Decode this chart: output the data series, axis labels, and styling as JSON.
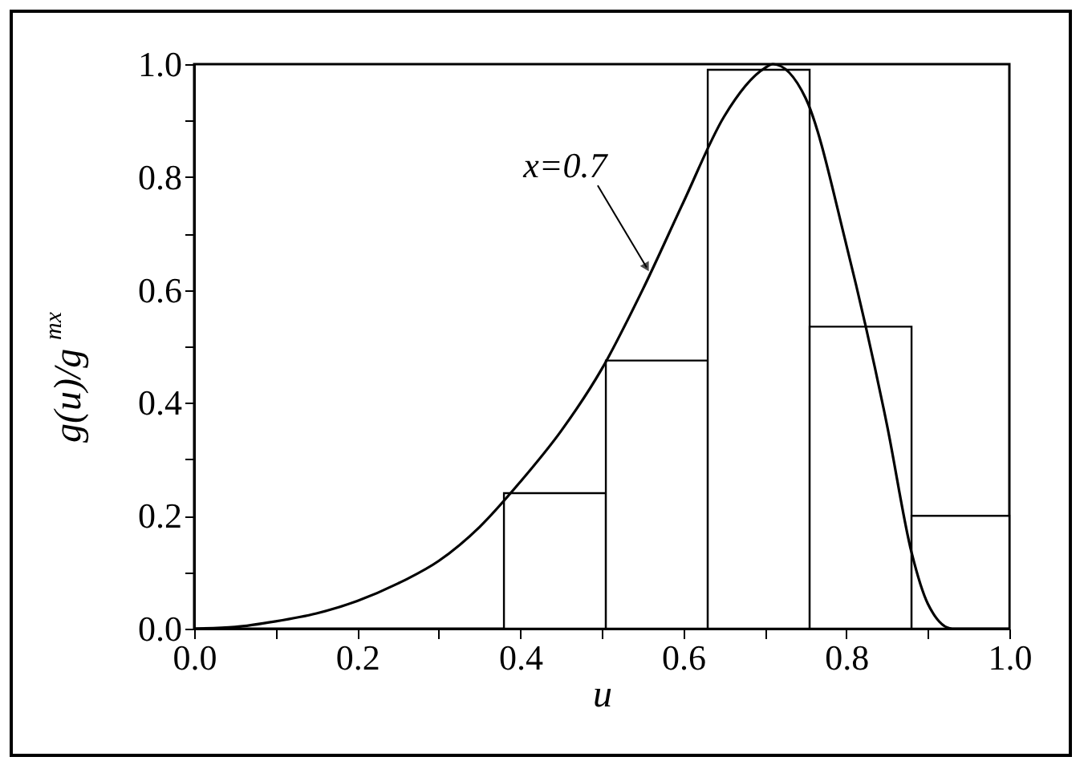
{
  "chart_data": {
    "type": "histogram",
    "xlabel": "u",
    "ylabel": "g(u)/g$^{mx}$",
    "bins": [
      0.38,
      0.505,
      0.63,
      0.755,
      0.88,
      1.0
    ],
    "values": [
      0.24,
      0.475,
      0.99,
      0.535,
      0.2
    ],
    "color": "#ffffff",
    "series": [
      {
        "type": "line",
        "color": "#000000",
        "x": [
          0,
          0.05,
          0.1,
          0.15,
          0.2,
          0.25,
          0.3,
          0.35,
          0.4,
          0.45,
          0.5,
          0.55,
          0.6,
          0.65,
          0.7,
          0.71,
          0.75,
          0.8,
          0.85,
          0.88,
          0.9,
          0.93,
          1.0
        ],
        "values": [
          0,
          0.003,
          0.013,
          0.027,
          0.049,
          0.08,
          0.12,
          0.18,
          0.26,
          0.35,
          0.46,
          0.6,
          0.755,
          0.907,
          0.993,
          1.0,
          0.94,
          0.68,
          0.36,
          0.135,
          0.044,
          0,
          0
        ]
      }
    ],
    "annotations": [
      {
        "text": "x=0.7",
        "x": 0.555,
        "y": 0.64
      }
    ],
    "xlim": [
      0,
      1
    ],
    "ylim": [
      0,
      1
    ],
    "xticks": [
      {
        "value": 0,
        "label": "0.0"
      },
      {
        "value": 0.1,
        "label": null
      },
      0.2,
      {
        "value": 0.3,
        "label": null
      },
      0.4,
      {
        "value": 0.5,
        "label": null
      },
      0.6,
      {
        "value": 0.7,
        "label": null
      },
      0.8,
      {
        "value": 0.9,
        "label": null
      },
      {
        "value": 1,
        "label": "1.0"
      }
    ],
    "yticks": [
      {
        "value": 0,
        "label": "0.0"
      },
      {
        "value": 0.1,
        "label": null
      },
      0.2,
      {
        "value": 0.3,
        "label": null
      },
      0.4,
      {
        "value": 0.5,
        "label": null
      },
      0.6,
      {
        "value": 0.7,
        "label": null
      },
      0.8,
      {
        "value": 0.9,
        "label": null
      },
      {
        "value": 1,
        "label": "1.0"
      }
    ],
    "grid": false,
    "marker": "none",
    "line_style": "solid"
  }
}
